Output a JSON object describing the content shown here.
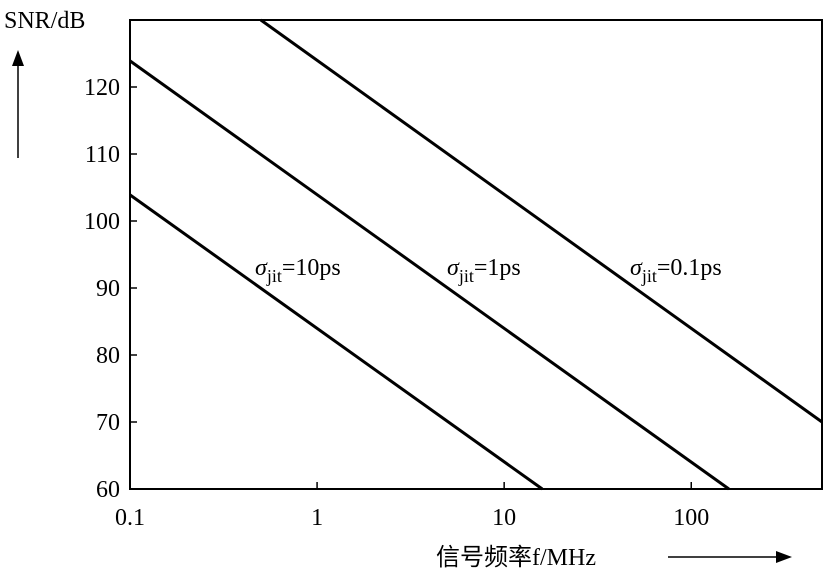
{
  "chart_data": {
    "type": "line",
    "ylabel": "SNR/dB",
    "xlabel": "信号频率f/MHz",
    "log_x": true,
    "xlim": [
      0.1,
      500
    ],
    "xticks": [
      0.1,
      1,
      10,
      100
    ],
    "ylim": [
      60,
      130
    ],
    "yticks": [
      60,
      70,
      80,
      90,
      100,
      110,
      120
    ],
    "series": [
      {
        "color": "#000000",
        "x": [
          0.1,
          16
        ],
        "values": [
          103.9,
          60
        ]
      },
      {
        "color": "#000000",
        "x": [
          0.1,
          159
        ],
        "values": [
          123.9,
          60
        ]
      },
      {
        "color": "#000000",
        "x": [
          0.5,
          500
        ],
        "values": [
          130,
          70
        ]
      }
    ],
    "annotations": [
      {
        "parts": [
          "σ",
          "jit",
          "=10ps"
        ]
      },
      {
        "parts": [
          "σ",
          "jit",
          "=1ps"
        ]
      },
      {
        "parts": [
          "σ",
          "jit",
          "=0.1ps"
        ]
      }
    ]
  }
}
